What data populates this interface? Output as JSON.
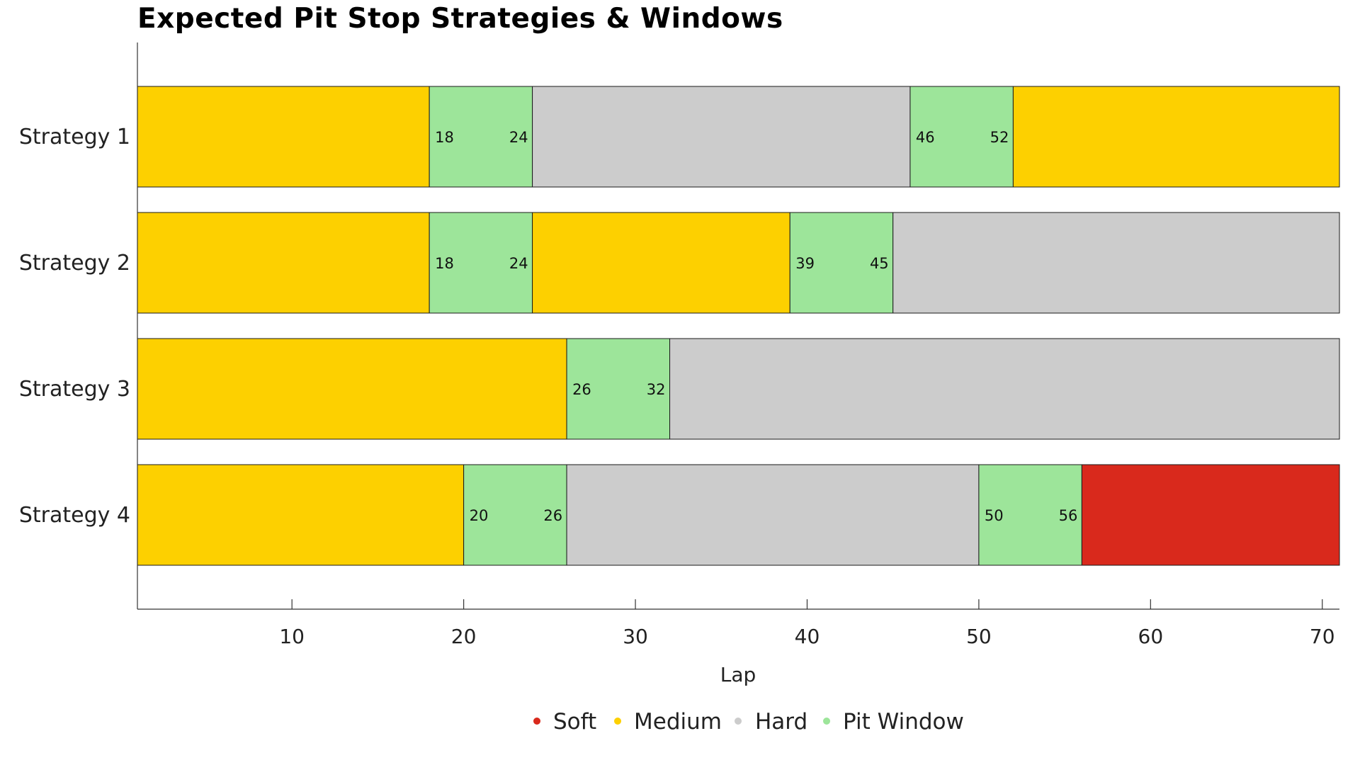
{
  "chart_data": {
    "type": "bar",
    "orientation": "horizontal-stacked",
    "title": "Expected Pit Stop Strategies & Windows",
    "xlabel": "Lap",
    "ylabel": "",
    "xlim": [
      1,
      71
    ],
    "xticks": [
      10,
      20,
      30,
      40,
      50,
      60,
      70
    ],
    "grid": false,
    "legend_position": "bottom-center",
    "compounds": {
      "Soft": "#d9291c",
      "Medium": "#fdd000",
      "Hard": "#cccccc",
      "Pit Window": "#9de59a"
    },
    "legend": [
      "Soft",
      "Medium",
      "Hard",
      "Pit Window"
    ],
    "strategies": [
      {
        "name": "Strategy 1",
        "segments": [
          {
            "compound": "Medium",
            "start": 1,
            "end": 18
          },
          {
            "compound": "Pit Window",
            "start": 18,
            "end": 24
          },
          {
            "compound": "Hard",
            "start": 24,
            "end": 46
          },
          {
            "compound": "Pit Window",
            "start": 46,
            "end": 52
          },
          {
            "compound": "Medium",
            "start": 52,
            "end": 71
          }
        ]
      },
      {
        "name": "Strategy 2",
        "segments": [
          {
            "compound": "Medium",
            "start": 1,
            "end": 18
          },
          {
            "compound": "Pit Window",
            "start": 18,
            "end": 24
          },
          {
            "compound": "Medium",
            "start": 24,
            "end": 39
          },
          {
            "compound": "Pit Window",
            "start": 39,
            "end": 45
          },
          {
            "compound": "Hard",
            "start": 45,
            "end": 71
          }
        ]
      },
      {
        "name": "Strategy 3",
        "segments": [
          {
            "compound": "Medium",
            "start": 1,
            "end": 26
          },
          {
            "compound": "Pit Window",
            "start": 26,
            "end": 32
          },
          {
            "compound": "Hard",
            "start": 32,
            "end": 71
          }
        ]
      },
      {
        "name": "Strategy 4",
        "segments": [
          {
            "compound": "Medium",
            "start": 1,
            "end": 20
          },
          {
            "compound": "Pit Window",
            "start": 20,
            "end": 26
          },
          {
            "compound": "Hard",
            "start": 26,
            "end": 50
          },
          {
            "compound": "Pit Window",
            "start": 50,
            "end": 56
          },
          {
            "compound": "Soft",
            "start": 56,
            "end": 71
          }
        ]
      }
    ]
  }
}
